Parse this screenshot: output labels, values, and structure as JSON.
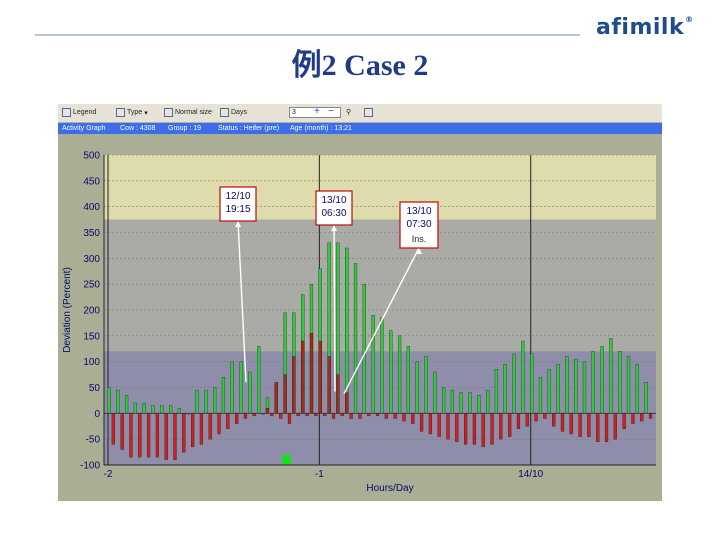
{
  "header": {
    "logo_text": "afimilk",
    "logo_mark": "®",
    "title": "例2 Case 2"
  },
  "toolbar": {
    "legend_label": "Legend",
    "type_label": "Type",
    "normal_size_label": "Normal size",
    "days_label": "Days",
    "days_value": "3",
    "zoom_in": "+",
    "zoom_out": "−"
  },
  "infobar": {
    "graph_label": "Activity Graph",
    "cow": "Cow : 4308",
    "group": "Group : 19",
    "status": "Status : Heifer (pre)",
    "age": "Age (month) : 13:21"
  },
  "chart_data": {
    "type": "bar",
    "ylabel": "Deviation (Percent)",
    "xlabel": "Hours/Day",
    "ylim": [
      -100,
      500
    ],
    "yticks": [
      "500",
      "450",
      "400",
      "350",
      "300",
      "250",
      "200",
      "150",
      "100",
      "50",
      "0",
      "-50",
      "-100"
    ],
    "xticks": [
      "-2",
      "-1",
      "14/10"
    ],
    "grid": true,
    "bands": [
      {
        "from": 375,
        "to": 500,
        "color": "#dedcac"
      },
      {
        "from": 120,
        "to": 375,
        "color": "#aaaaa6"
      },
      {
        "from": -100,
        "to": 120,
        "color": "#8e8eaa"
      }
    ],
    "colors": {
      "positive": "#2ecb3a",
      "negative": "#d41e1e",
      "dark": "#a32f14"
    },
    "series": [
      {
        "values": [
          50,
          -60,
          45,
          -70,
          35,
          -85,
          20,
          -85,
          20,
          -85,
          15,
          -85,
          15,
          -90,
          15,
          -90,
          10,
          -75,
          0,
          -65,
          45,
          -60,
          45,
          -50,
          50,
          -40,
          70,
          -30,
          100,
          -20,
          100,
          -10,
          80,
          -5,
          130,
          0,
          30,
          -5,
          55,
          -10,
          195,
          -20,
          195,
          -5,
          230,
          -5,
          250,
          -5,
          280,
          -5,
          330,
          -10,
          330,
          -5,
          320,
          -10,
          290,
          -10,
          250,
          -5,
          190,
          -5,
          185,
          -10,
          160,
          -10,
          150,
          -15,
          130,
          -20,
          100,
          -35,
          110,
          -40,
          80,
          -45,
          50,
          -50,
          45,
          -55,
          40,
          -60,
          40,
          -60,
          35,
          -65,
          45,
          -60,
          85,
          -50,
          95,
          -45,
          115,
          -30,
          140,
          -25,
          115,
          -15,
          70,
          -10,
          85,
          -25,
          95,
          -35,
          110,
          -40,
          105,
          -45,
          100,
          -45,
          120,
          -55,
          130,
          -55,
          145,
          -50,
          120,
          -30,
          110,
          -20,
          95,
          -15,
          60,
          -10
        ]
      },
      {
        "name": "",
        "values": [
          10,
          60,
          75,
          110,
          140,
          155,
          140,
          110,
          75,
          40
        ]
      }
    ],
    "annotations": [
      {
        "date": "12/10",
        "time": "19:15"
      },
      {
        "date": "13/10",
        "time": "06:30"
      },
      {
        "date": "13/10",
        "time": "07:30",
        "note": "Ins."
      }
    ]
  }
}
